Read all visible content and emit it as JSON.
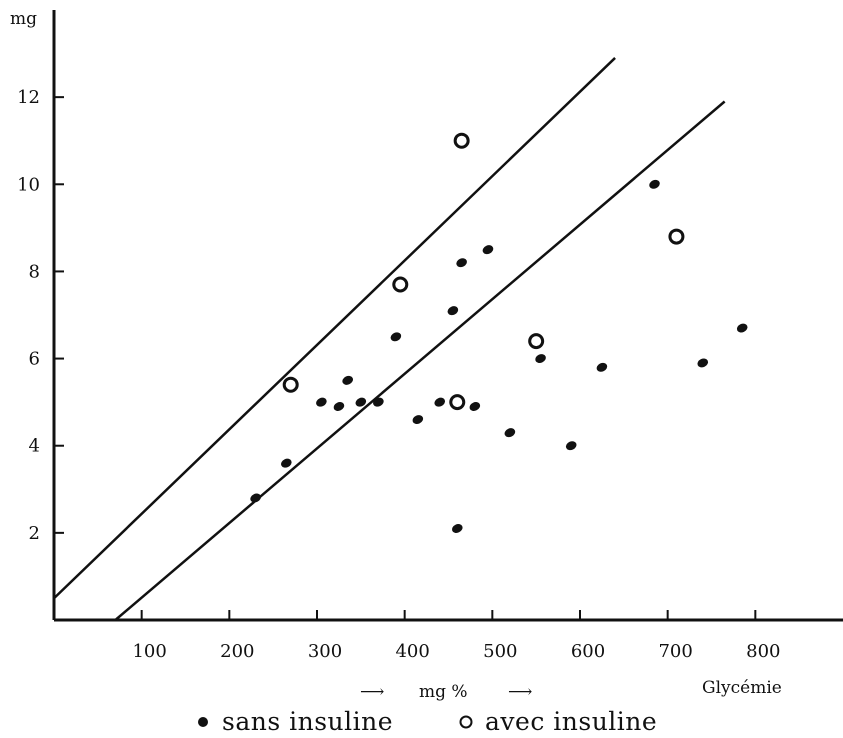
{
  "chart_data": {
    "type": "scatter",
    "y_unit_label": "mg",
    "x_axis_label": "mg %",
    "x_axis_arrow": "⟶",
    "x_axis_title": "Glycémie",
    "xlim": [
      0,
      900
    ],
    "ylim": [
      0,
      14
    ],
    "x_ticks": [
      100,
      200,
      300,
      400,
      500,
      600,
      700,
      800
    ],
    "y_ticks": [
      2,
      4,
      6,
      8,
      10,
      12
    ],
    "grid": false,
    "legend_position": "bottom-center",
    "series": [
      {
        "name": "sans insuline",
        "marker": "filled-dot",
        "points": [
          [
            230,
            2.8
          ],
          [
            265,
            3.6
          ],
          [
            305,
            5.0
          ],
          [
            325,
            4.9
          ],
          [
            335,
            5.5
          ],
          [
            350,
            5.0
          ],
          [
            370,
            5.0
          ],
          [
            390,
            6.5
          ],
          [
            415,
            4.6
          ],
          [
            440,
            5.0
          ],
          [
            455,
            7.1
          ],
          [
            460,
            2.1
          ],
          [
            465,
            8.2
          ],
          [
            480,
            4.9
          ],
          [
            495,
            8.5
          ],
          [
            520,
            4.3
          ],
          [
            555,
            6.0
          ],
          [
            590,
            4.0
          ],
          [
            625,
            5.8
          ],
          [
            685,
            10.0
          ],
          [
            740,
            5.9
          ],
          [
            785,
            6.7
          ]
        ]
      },
      {
        "name": "avec insuline",
        "marker": "open-circle",
        "points": [
          [
            270,
            5.4
          ],
          [
            395,
            7.7
          ],
          [
            460,
            5.0
          ],
          [
            465,
            11.0
          ],
          [
            550,
            6.4
          ],
          [
            710,
            8.8
          ]
        ]
      }
    ],
    "reference_lines": [
      {
        "from": [
          0,
          0.5
        ],
        "to": [
          640,
          12.9
        ]
      },
      {
        "from": [
          70,
          0.0
        ],
        "to": [
          765,
          11.9
        ]
      }
    ],
    "colors": {
      "ink": "#111111",
      "background": "#ffffff"
    }
  }
}
